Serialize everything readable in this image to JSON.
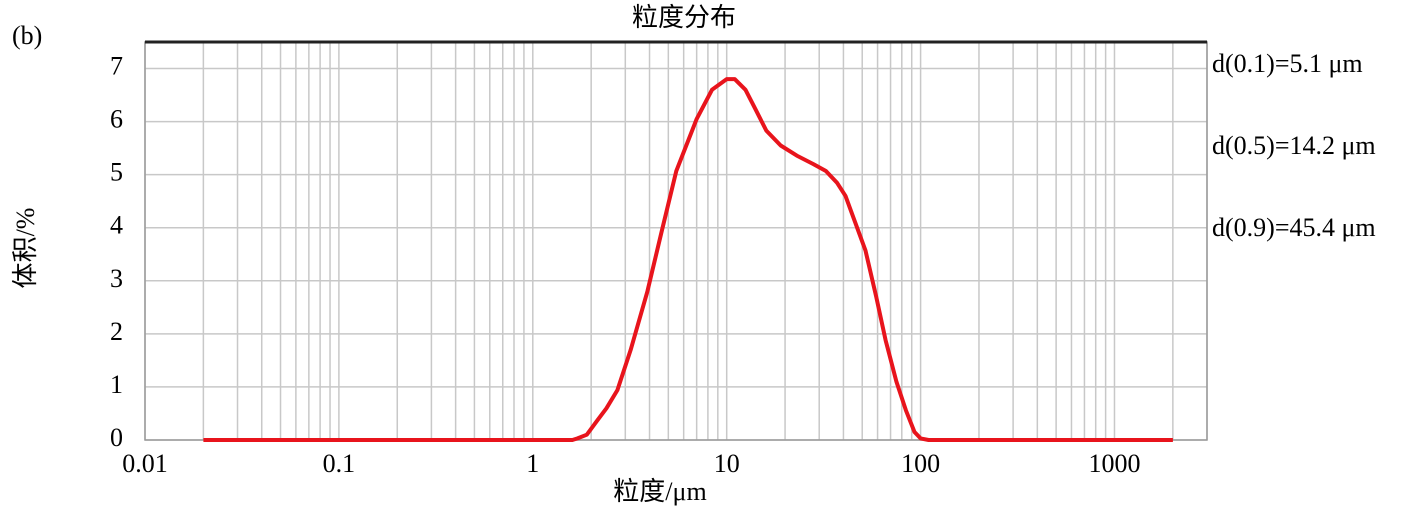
{
  "chart_data": {
    "type": "line",
    "title": "粒度分布",
    "panel_label": "(b)",
    "x_label": "粒度/μm",
    "y_label": "体积/%",
    "annotations": [
      "d(0.1)=5.1 μm",
      "d(0.5)=14.2 μm",
      "d(0.9)=45.4 μm"
    ],
    "x_scale": "log",
    "grid": true,
    "xlim": [
      0.01,
      3000
    ],
    "ylim": [
      0,
      7.5
    ],
    "xticks": [
      0.01,
      0.1,
      1,
      10,
      100,
      1000
    ],
    "xminorticks": [
      0.02,
      0.03,
      0.04,
      0.05,
      0.06,
      0.07,
      0.08,
      0.09,
      0.2,
      0.3,
      0.4,
      0.5,
      0.6,
      0.7,
      0.8,
      0.9,
      2,
      3,
      4,
      5,
      6,
      7,
      8,
      9,
      20,
      30,
      40,
      50,
      60,
      70,
      80,
      90,
      200,
      300,
      400,
      500,
      600,
      700,
      800,
      900,
      2000,
      3000
    ],
    "yticks": [
      0,
      1,
      2,
      3,
      4,
      5,
      6,
      7
    ],
    "series": [
      {
        "color": "#e8141c",
        "x": [
          0.02,
          1.6,
          1.7,
          1.9,
          2.15,
          2.4,
          2.73,
          3.2,
          3.9,
          4.6,
          5.5,
          7,
          8.4,
          10,
          11,
          12.5,
          14,
          16,
          19,
          23,
          28,
          32.5,
          37,
          41,
          46,
          52,
          59,
          66,
          75,
          84,
          93,
          100,
          110,
          2000
        ],
        "values": [
          0,
          0,
          0.03,
          0.1,
          0.37,
          0.6,
          0.94,
          1.7,
          2.8,
          3.9,
          5.07,
          6.05,
          6.6,
          6.8,
          6.8,
          6.6,
          6.25,
          5.83,
          5.55,
          5.36,
          5.2,
          5.07,
          4.85,
          4.6,
          4.1,
          3.57,
          2.7,
          1.88,
          1.1,
          0.56,
          0.15,
          0.03,
          0,
          0
        ]
      }
    ]
  }
}
